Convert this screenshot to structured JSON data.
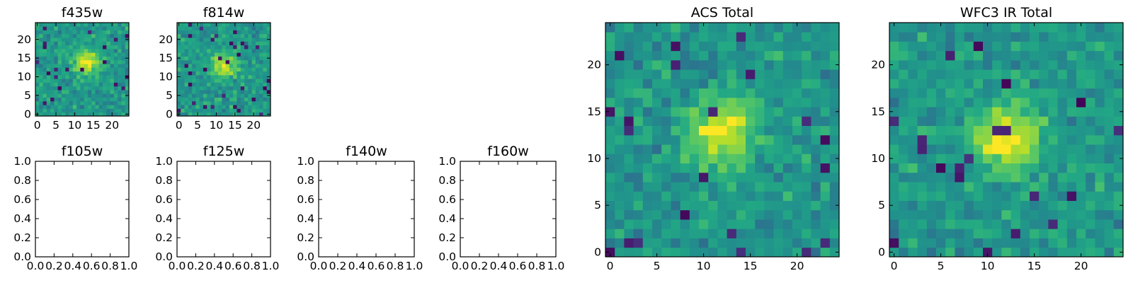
{
  "chart_data": [
    {
      "type": "heatmap",
      "title": "f435w",
      "xlabel": "",
      "ylabel": "",
      "grid_size": 25,
      "xlim": [
        -0.5,
        24.5
      ],
      "ylim": [
        -0.5,
        24.5
      ],
      "xticks": [
        0,
        5,
        10,
        15,
        20
      ],
      "yticks": [
        0,
        5,
        10,
        15,
        20
      ],
      "colormap": "viridis",
      "seed": 435,
      "center": [
        13,
        14
      ],
      "peak": 0.45,
      "dark_fraction": 0.05,
      "grid": false,
      "legend": false
    },
    {
      "type": "heatmap",
      "title": "f814w",
      "xlabel": "",
      "ylabel": "",
      "grid_size": 25,
      "xlim": [
        -0.5,
        24.5
      ],
      "ylim": [
        -0.5,
        24.5
      ],
      "xticks": [
        0,
        5,
        10,
        15,
        20
      ],
      "yticks": [
        0,
        5,
        10,
        15,
        20
      ],
      "colormap": "viridis",
      "seed": 814,
      "center": [
        12,
        13
      ],
      "peak": 0.4,
      "dark_fraction": 0.05,
      "grid": false,
      "legend": false
    },
    {
      "type": "empty",
      "title": "f105w",
      "xlim": [
        0,
        1
      ],
      "ylim": [
        0,
        1
      ],
      "xticks": [
        "0.0",
        "0.2",
        "0.4",
        "0.6",
        "0.8",
        "1.0"
      ],
      "yticks": [
        "0.0",
        "0.2",
        "0.4",
        "0.6",
        "0.8",
        "1.0"
      ]
    },
    {
      "type": "empty",
      "title": "f125w",
      "xlim": [
        0,
        1
      ],
      "ylim": [
        0,
        1
      ],
      "xticks": [
        "0.0",
        "0.2",
        "0.4",
        "0.6",
        "0.8",
        "1.0"
      ],
      "yticks": [
        "0.0",
        "0.2",
        "0.4",
        "0.6",
        "0.8",
        "1.0"
      ]
    },
    {
      "type": "empty",
      "title": "f140w",
      "xlim": [
        0,
        1
      ],
      "ylim": [
        0,
        1
      ],
      "xticks": [
        "0.0",
        "0.2",
        "0.4",
        "0.6",
        "0.8",
        "1.0"
      ],
      "yticks": [
        "0.0",
        "0.2",
        "0.4",
        "0.6",
        "0.8",
        "1.0"
      ]
    },
    {
      "type": "empty",
      "title": "f160w",
      "xlim": [
        0,
        1
      ],
      "ylim": [
        0,
        1
      ],
      "xticks": [
        "0.0",
        "0.2",
        "0.4",
        "0.6",
        "0.8",
        "1.0"
      ],
      "yticks": [
        "0.0",
        "0.2",
        "0.4",
        "0.6",
        "0.8",
        "1.0"
      ]
    },
    {
      "type": "heatmap",
      "title": "ACS Total",
      "xlabel": "",
      "ylabel": "",
      "grid_size": 25,
      "xlim": [
        -0.5,
        24.5
      ],
      "ylim": [
        -0.5,
        24.5
      ],
      "xticks": [
        0,
        5,
        10,
        15,
        20
      ],
      "yticks": [
        0,
        5,
        10,
        15,
        20
      ],
      "colormap": "viridis",
      "seed": 2017,
      "center": [
        12,
        13
      ],
      "peak": 0.45,
      "dark_fraction": 0.03,
      "grid": false,
      "legend": false
    },
    {
      "type": "heatmap",
      "title": "WFC3 IR Total",
      "xlabel": "",
      "ylabel": "",
      "grid_size": 25,
      "xlim": [
        -0.5,
        24.5
      ],
      "ylim": [
        -0.5,
        24.5
      ],
      "xticks": [
        0,
        5,
        10,
        15,
        20
      ],
      "yticks": [
        0,
        5,
        10,
        15,
        20
      ],
      "colormap": "viridis",
      "seed": 3141,
      "center": [
        12,
        12
      ],
      "peak": 0.5,
      "dark_fraction": 0.03,
      "grid": false,
      "legend": false
    }
  ]
}
